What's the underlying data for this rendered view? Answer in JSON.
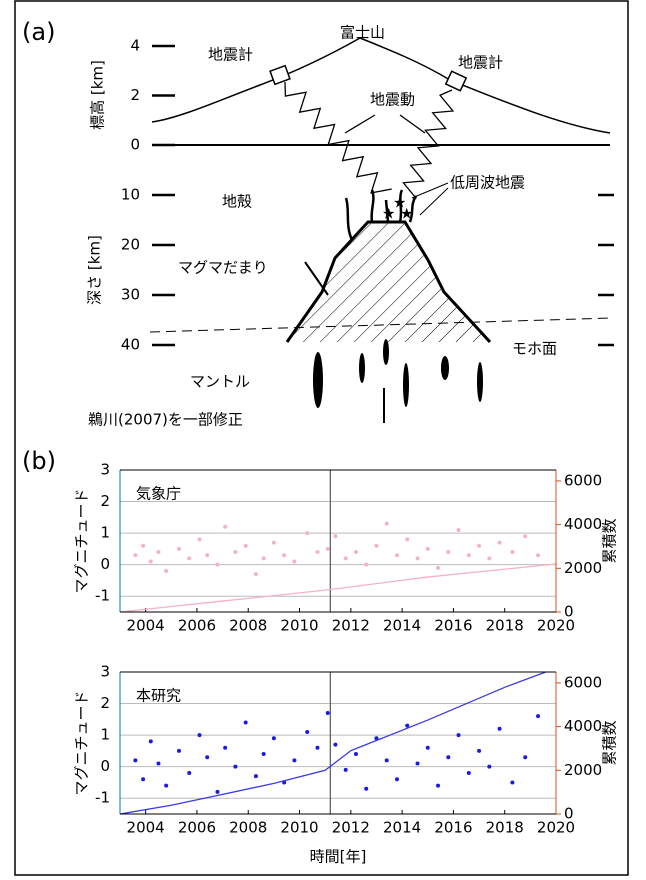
{
  "diagram": {
    "panel_label": "(a)",
    "mountain": "富士山",
    "seismometer_left": "地震計",
    "seismometer_right": "地震計",
    "ground_motion": "地震動",
    "elevation_label": "標高 [km]",
    "elevation_ticks": [
      4,
      2,
      0
    ],
    "depth_label": "深さ [km]",
    "depth_ticks": [
      10,
      20,
      30,
      40
    ],
    "crust": "地殻",
    "lfe": "低周波地震",
    "magma": "マグマだまり",
    "moho": "モホ面",
    "mantle": "マントル",
    "source": "鵜川(2007)を一部修正"
  },
  "charts_panel_label": "(b)",
  "chart_data": [
    {
      "type": "scatter",
      "label": "気象庁",
      "ylabel": "マグニチュード",
      "y2label": "累積数",
      "xlim": [
        2003,
        2020
      ],
      "xticks": [
        2004,
        2006,
        2008,
        2010,
        2012,
        2014,
        2016,
        2018,
        2020
      ],
      "ylim": [
        -1.5,
        3
      ],
      "yticks": [
        -1,
        0,
        1,
        2,
        3
      ],
      "y2lim": [
        0,
        6500
      ],
      "y2ticks": [
        0,
        2000,
        4000,
        6000
      ],
      "vlines": [
        2011.2
      ],
      "grid": true,
      "ycolor": "#0072bd",
      "y2color": "#d95319",
      "series": [
        {
          "color": "#f4b3c2",
          "x": [
            2003.6,
            2003.9,
            2004.2,
            2004.5,
            2004.8,
            2005.3,
            2005.7,
            2006.1,
            2006.4,
            2006.8,
            2007.1,
            2007.5,
            2007.9,
            2008.3,
            2008.6,
            2009.0,
            2009.4,
            2009.8,
            2010.3,
            2010.7,
            2011.1,
            2011.4,
            2011.8,
            2012.2,
            2012.6,
            2013.0,
            2013.4,
            2013.8,
            2014.2,
            2014.6,
            2015.0,
            2015.4,
            2015.8,
            2016.2,
            2016.6,
            2017.0,
            2017.4,
            2017.8,
            2018.3,
            2018.8,
            2019.3
          ],
          "values": [
            0.3,
            0.6,
            0.1,
            0.4,
            -0.2,
            0.5,
            0.2,
            0.8,
            0.3,
            0.0,
            1.2,
            0.4,
            0.6,
            -0.3,
            0.2,
            0.7,
            0.3,
            0.1,
            1.0,
            0.4,
            0.5,
            0.9,
            0.2,
            0.4,
            0.0,
            0.6,
            1.3,
            0.3,
            0.8,
            0.2,
            0.5,
            -0.1,
            0.4,
            1.1,
            0.3,
            0.6,
            0.2,
            0.7,
            0.4,
            0.9,
            0.3
          ]
        },
        {
          "color": "#f4b3c2",
          "axis": "y2",
          "x": [
            2003,
            2007,
            2011,
            2015,
            2020
          ],
          "values": [
            0,
            500,
            1000,
            1600,
            2200
          ]
        }
      ]
    },
    {
      "type": "scatter",
      "label": "本研究",
      "ylabel": "マグニチュード",
      "y2label": "累積数",
      "xlabel": "時間[年]",
      "xlim": [
        2003,
        2020
      ],
      "xticks": [
        2004,
        2006,
        2008,
        2010,
        2012,
        2014,
        2016,
        2018,
        2020
      ],
      "ylim": [
        -1.5,
        3
      ],
      "yticks": [
        -1,
        0,
        1,
        2,
        3
      ],
      "y2lim": [
        0,
        6500
      ],
      "y2ticks": [
        0,
        2000,
        4000,
        6000
      ],
      "vlines": [
        2011.2
      ],
      "grid": true,
      "ycolor": "#0072bd",
      "y2color": "#d95319",
      "series": [
        {
          "color": "#1a1ae6",
          "x": [
            2003.6,
            2003.9,
            2004.2,
            2004.5,
            2004.8,
            2005.3,
            2005.7,
            2006.1,
            2006.4,
            2006.8,
            2007.1,
            2007.5,
            2007.9,
            2008.3,
            2008.6,
            2009.0,
            2009.4,
            2009.8,
            2010.3,
            2010.7,
            2011.1,
            2011.4,
            2011.8,
            2012.2,
            2012.6,
            2013.0,
            2013.4,
            2013.8,
            2014.2,
            2014.6,
            2015.0,
            2015.4,
            2015.8,
            2016.2,
            2016.6,
            2017.0,
            2017.4,
            2017.8,
            2018.3,
            2018.8,
            2019.3
          ],
          "values": [
            0.2,
            -0.4,
            0.8,
            0.1,
            -0.6,
            0.5,
            -0.2,
            1.0,
            0.3,
            -0.8,
            0.6,
            0.0,
            1.4,
            -0.3,
            0.4,
            0.9,
            -0.5,
            0.2,
            1.1,
            0.6,
            1.7,
            0.7,
            -0.1,
            0.4,
            -0.7,
            0.9,
            0.2,
            -0.4,
            1.3,
            0.1,
            0.6,
            -0.6,
            0.3,
            1.0,
            -0.2,
            0.5,
            0.0,
            1.2,
            -0.5,
            0.3,
            1.6
          ]
        },
        {
          "color": "#3a3ae0",
          "axis": "y2",
          "x": [
            2003,
            2005,
            2007,
            2009,
            2011,
            2012,
            2015,
            2018,
            2019.6
          ],
          "values": [
            0,
            400,
            900,
            1400,
            2000,
            2900,
            4300,
            5800,
            6500
          ]
        }
      ]
    }
  ]
}
